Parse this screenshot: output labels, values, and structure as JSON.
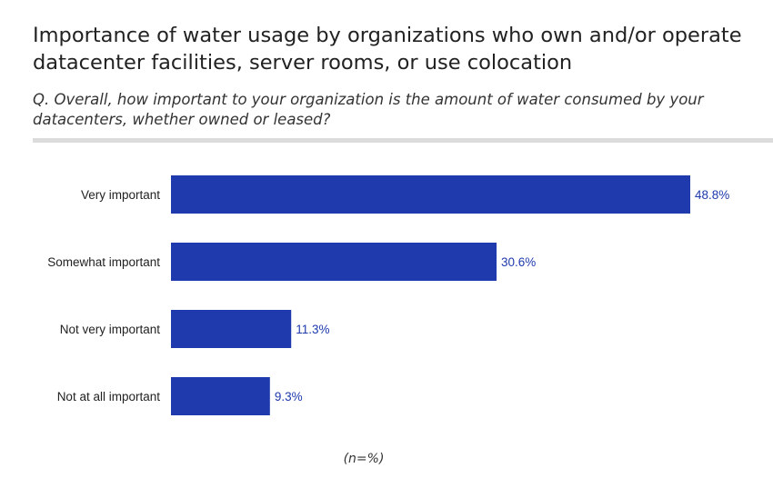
{
  "header": {
    "title": "Importance of water usage by organizations who own and/or operate datacenter facilities, server rooms, or use colocation",
    "subtitle": "Q. Overall, how important  to your organization is the amount of water consumed by your datacenters, whether owned or leased?"
  },
  "footer": {
    "note": "(n=%)"
  },
  "colors": {
    "bar": "#1f3aad",
    "value_label": "#1f3aad",
    "category_label": "#222222",
    "divider": "#dcdcdc"
  },
  "chart_data": {
    "type": "bar",
    "orientation": "horizontal",
    "categories": [
      "Very important",
      "Somewhat important",
      "Not very important",
      "Not at all important"
    ],
    "values": [
      48.8,
      30.6,
      11.3,
      9.3
    ],
    "value_labels": [
      "48.8%",
      "30.6%",
      "11.3%",
      "9.3%"
    ],
    "xlabel": "",
    "ylabel": "",
    "xlim": [
      0,
      48.8
    ],
    "grid": false,
    "legend": "none"
  }
}
